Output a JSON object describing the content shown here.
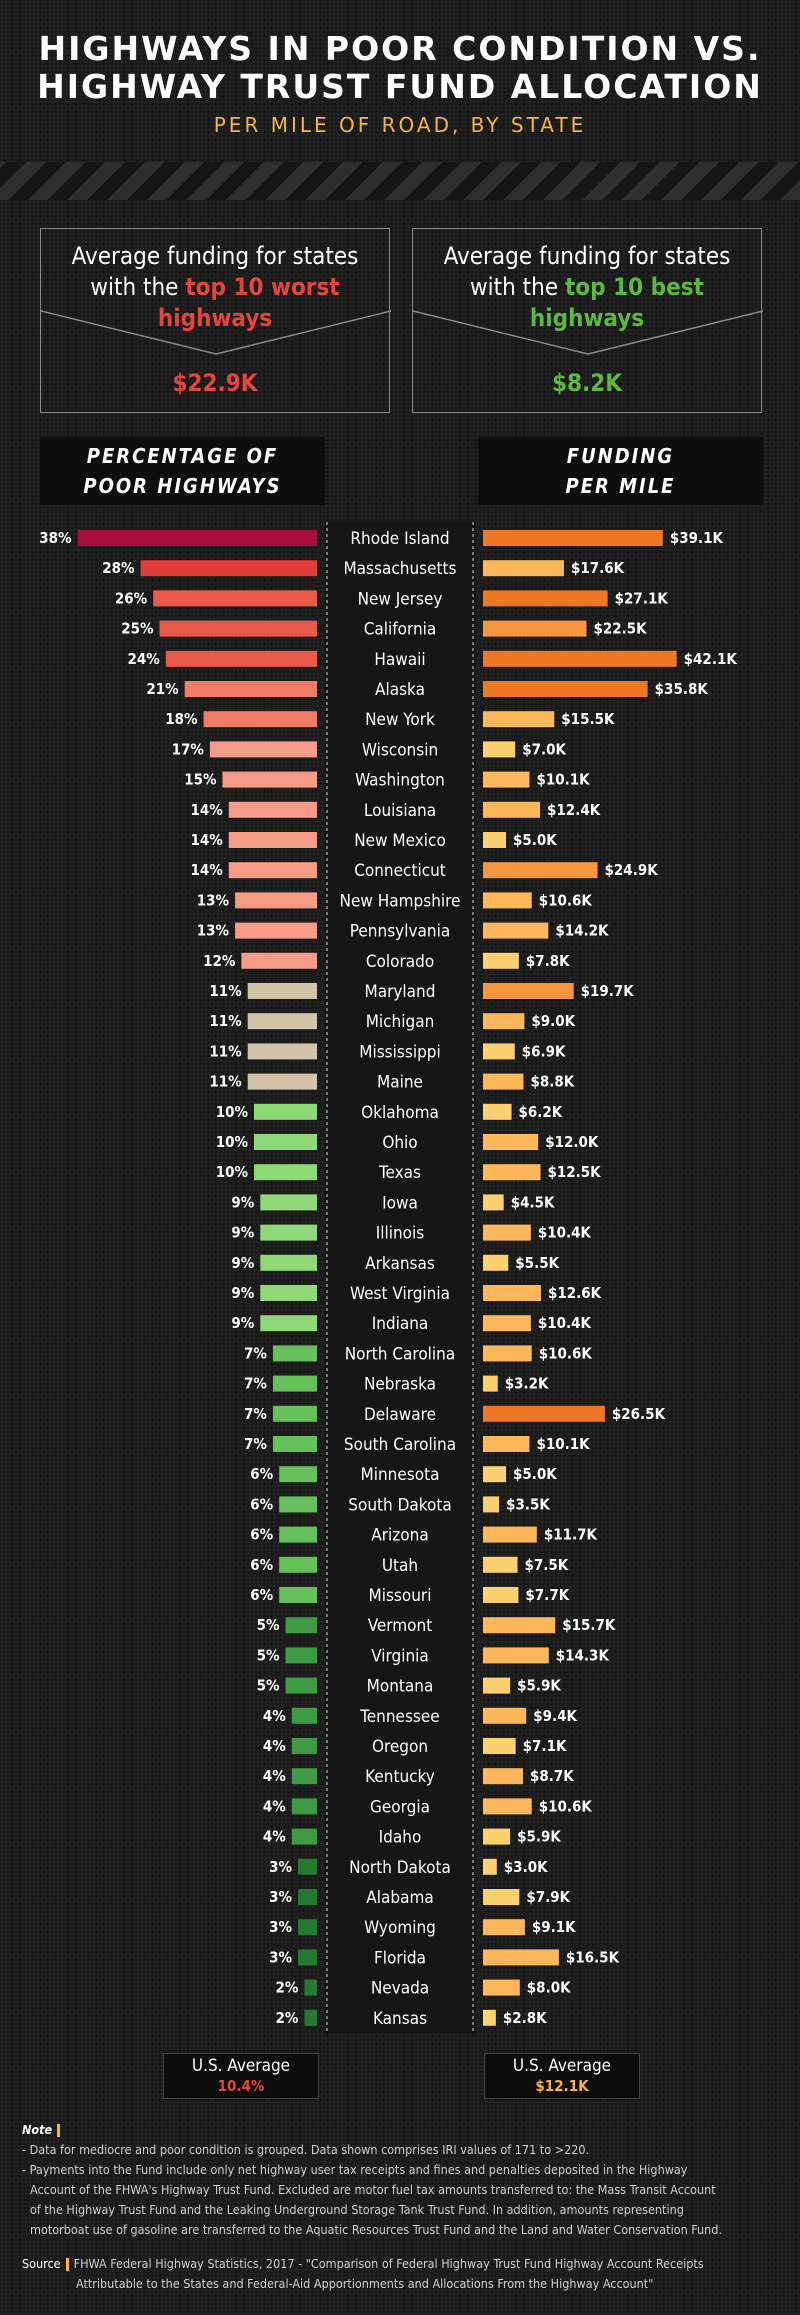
{
  "header": {
    "title_line1": "HIGHWAYS IN POOR CONDITION VS.",
    "title_line2": "HIGHWAY TRUST FUND ALLOCATION",
    "subtitle": "PER MILE OF ROAD, BY STATE"
  },
  "callouts": {
    "worst": {
      "line1": "Average funding for states",
      "line2_prefix": "with the ",
      "line2_highlight": "top 10 worst",
      "line3_highlight": "highways",
      "value": "$22.9K",
      "highlight_color": "#e8443e"
    },
    "best": {
      "line1": "Average funding for states",
      "line2_prefix": "with the ",
      "line2_highlight": "top 10 best",
      "line3_highlight": "highways",
      "value": "$8.2K",
      "highlight_color": "#5cb940"
    }
  },
  "columns": {
    "left_line1": "PERCENTAGE OF",
    "left_line2": "POOR HIGHWAYS",
    "right_line1": "FUNDING",
    "right_line2": "PER MILE"
  },
  "averages": {
    "label": "U.S. Average",
    "poor_value": "10.4%",
    "funding_value": "$12.1K",
    "poor_color": "#e8443e",
    "funding_color": "#f6b540"
  },
  "chart_data": {
    "type": "bar",
    "categories": [
      "Rhode Island",
      "Massachusetts",
      "New Jersey",
      "California",
      "Hawaii",
      "Alaska",
      "New York",
      "Wisconsin",
      "Washington",
      "Louisiana",
      "New Mexico",
      "Connecticut",
      "New Hampshire",
      "Pennsylvania",
      "Colorado",
      "Maryland",
      "Michigan",
      "Mississippi",
      "Maine",
      "Oklahoma",
      "Ohio",
      "Texas",
      "Iowa",
      "Illinois",
      "Arkansas",
      "West Virginia",
      "Indiana",
      "North Carolina",
      "Nebraska",
      "Delaware",
      "South Carolina",
      "Minnesota",
      "South Dakota",
      "Arizona",
      "Utah",
      "Missouri",
      "Vermont",
      "Virginia",
      "Montana",
      "Tennessee",
      "Oregon",
      "Kentucky",
      "Georgia",
      "Idaho",
      "North Dakota",
      "Alabama",
      "Wyoming",
      "Florida",
      "Nevada",
      "Kansas"
    ],
    "series": [
      {
        "name": "PERCENTAGE OF POOR HIGHWAYS",
        "values": [
          38,
          28,
          26,
          25,
          24,
          21,
          18,
          17,
          15,
          14,
          14,
          14,
          13,
          13,
          12,
          11,
          11,
          11,
          11,
          10,
          10,
          10,
          9,
          9,
          9,
          9,
          9,
          7,
          7,
          7,
          7,
          6,
          6,
          6,
          6,
          6,
          5,
          5,
          5,
          4,
          4,
          4,
          4,
          4,
          3,
          3,
          3,
          3,
          2,
          2
        ],
        "labels": [
          "38%",
          "28%",
          "26%",
          "25%",
          "24%",
          "21%",
          "18%",
          "17%",
          "15%",
          "14%",
          "14%",
          "14%",
          "13%",
          "13%",
          "12%",
          "11%",
          "11%",
          "11%",
          "11%",
          "10%",
          "10%",
          "10%",
          "9%",
          "9%",
          "9%",
          "9%",
          "9%",
          "7%",
          "7%",
          "7%",
          "7%",
          "6%",
          "6%",
          "6%",
          "6%",
          "6%",
          "5%",
          "5%",
          "5%",
          "4%",
          "4%",
          "4%",
          "4%",
          "4%",
          "3%",
          "3%",
          "3%",
          "3%",
          "2%",
          "2%"
        ]
      },
      {
        "name": "FUNDING PER MILE",
        "values": [
          39.1,
          17.6,
          27.1,
          22.5,
          42.1,
          35.8,
          15.5,
          7.0,
          10.1,
          12.4,
          5.0,
          24.9,
          10.6,
          14.2,
          7.8,
          19.7,
          9.0,
          6.9,
          8.8,
          6.2,
          12.0,
          12.5,
          4.5,
          10.4,
          5.5,
          12.6,
          10.4,
          10.6,
          3.2,
          26.5,
          10.1,
          5.0,
          3.5,
          11.7,
          7.5,
          7.7,
          15.7,
          14.3,
          5.9,
          9.4,
          7.1,
          8.7,
          10.6,
          5.9,
          3.0,
          7.9,
          9.1,
          16.5,
          8.0,
          2.8
        ],
        "labels": [
          "$39.1K",
          "$17.6K",
          "$27.1K",
          "$22.5K",
          "$42.1K",
          "$35.8K",
          "$15.5K",
          "$7.0K",
          "$10.1K",
          "$12.4K",
          "$5.0K",
          "$24.9K",
          "$10.6K",
          "$14.2K",
          "$7.8K",
          "$19.7K",
          "$9.0K",
          "$6.9K",
          "$8.8K",
          "$6.2K",
          "$12.0K",
          "$12.5K",
          "$4.5K",
          "$10.4K",
          "$5.5K",
          "$12.6K",
          "$10.4K",
          "$10.6K",
          "$3.2K",
          "$26.5K",
          "$10.1K",
          "$5.0K",
          "$3.5K",
          "$11.7K",
          "$7.5K",
          "$7.7K",
          "$15.7K",
          "$14.3K",
          "$5.9K",
          "$9.4K",
          "$7.1K",
          "$8.7K",
          "$10.6K",
          "$5.9K",
          "$3.0K",
          "$7.9K",
          "$9.1K",
          "$16.5K",
          "$8.0K",
          "$2.8K"
        ]
      }
    ],
    "colors": {
      "poor_scale": [
        "#a5103b",
        "#e33a3a",
        "#ea5a4a",
        "#f07c66",
        "#f59b86",
        "#d1c4a8",
        "#8fd877",
        "#66c05a",
        "#3f9b43",
        "#247a30"
      ],
      "funding_scale": [
        "#fbd06e",
        "#fbb75a",
        "#f6973f",
        "#ef7623"
      ]
    }
  },
  "notes": {
    "head": "Note",
    "line1": "- Data for mediocre and poor condition is grouped. Data shown comprises IRI values of 171 to >220.",
    "line2": "- Payments into the Fund include only net highway user tax receipts and fines and penalties deposited in the Highway",
    "line3": "  Account of the FHWA's Highway Trust Fund. Excluded are motor fuel tax amounts transferred to: the Mass Transit Account",
    "line4": "  of the Highway Trust Fund and the Leaking Underground Storage Tank Trust Fund. In addition, amounts representing",
    "line5": "  motorboat use of gasoline are transferred to the Aquatic Resources Trust Fund and the Land and Water Conservation Fund.",
    "source_head": "Source",
    "source_line1": "FHWA Federal Highway Statistics, 2017 - \"Comparison of Federal Highway Trust Fund Highway Account Receipts",
    "source_line2": "Attributable to the States and Federal-Aid Apportionments and Allocations From the Highway Account\""
  }
}
